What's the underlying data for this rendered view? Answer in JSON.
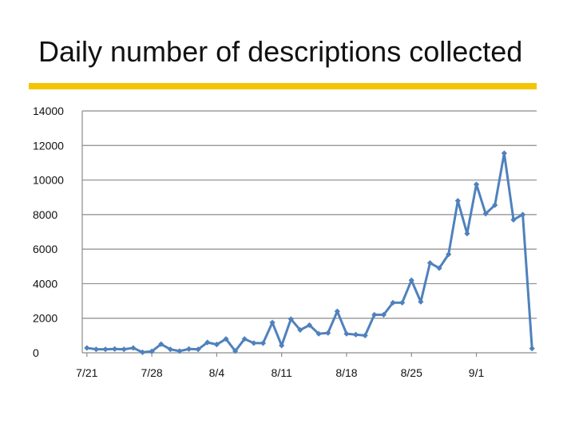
{
  "slide": {
    "title": "Daily number of descriptions collected",
    "accent_color": "#F5C400"
  },
  "chart_data": {
    "type": "line",
    "title": "",
    "xlabel": "",
    "ylabel": "",
    "ylim": [
      0,
      14000
    ],
    "yticks": [
      0,
      2000,
      4000,
      6000,
      8000,
      10000,
      12000,
      14000
    ],
    "xtick_labels": [
      "7/21",
      "7/28",
      "8/4",
      "8/11",
      "8/18",
      "8/25",
      "9/1"
    ],
    "first_date": "7/21",
    "grid": "horizontal",
    "legend": "none",
    "line_color": "#4F81BD",
    "series": [
      {
        "values": [
          280,
          200,
          200,
          220,
          200,
          280,
          30,
          80,
          500,
          200,
          100,
          220,
          200,
          600,
          480,
          800,
          100,
          800,
          560,
          560,
          1750,
          420,
          1950,
          1320,
          1600,
          1100,
          1150,
          2400,
          1100,
          1050,
          1000,
          2200,
          2200,
          2900,
          2900,
          4200,
          2950,
          5200,
          4900,
          5700,
          8800,
          6900,
          9750,
          8050,
          8550,
          11550,
          7700,
          8000,
          250
        ]
      }
    ]
  }
}
